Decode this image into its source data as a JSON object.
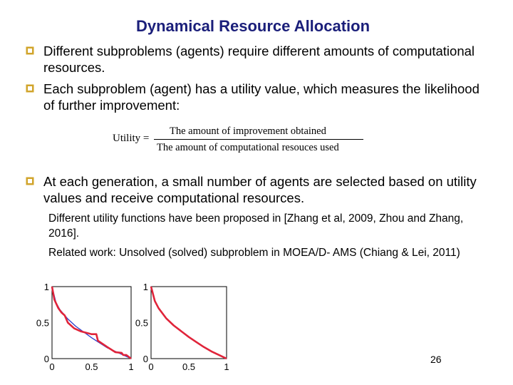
{
  "title": "Dynamical Resource Allocation",
  "colors": {
    "title": "#1b1f7a",
    "bullet_mark": "#d1a42b",
    "curve_red": "#e0243a",
    "curve_blue": "#2b3bcc"
  },
  "bullets": [
    {
      "icon": "checkbox-bullet-icon",
      "text": "Different subproblems (agents) require different amounts of computational resources."
    },
    {
      "icon": "checkbox-bullet-icon",
      "text": " Each subproblem (agent) has a utility value, which measures the likelihood of further improvement:"
    },
    {
      "icon": "checkbox-bullet-icon",
      "text": "At each generation,  a small number of agents are selected based on utility values and receive computational resources."
    }
  ],
  "formula": {
    "lhs": "Utility =",
    "numerator": "The amount of improvement  obtained",
    "denominator": "The amount of computational resouces used"
  },
  "subpoints": [
    "Different utility functions have been proposed in [Zhang et al, 2009, Zhou and Zhang, 2016].",
    "Related work:  Unsolved (solved) subproblem in MOEA/D- AMS (Chiang & Lei, 2011)"
  ],
  "chart_data": [
    {
      "type": "line",
      "xlim": [
        0,
        1
      ],
      "ylim": [
        0,
        1
      ],
      "xticks": [
        "0",
        "0.5",
        "1"
      ],
      "yticks": [
        "0",
        "0.5",
        "1"
      ],
      "series": [
        {
          "color": "#2b3bcc",
          "x": [
            0,
            0.05,
            0.1,
            0.2,
            0.3,
            0.4,
            0.5,
            0.6,
            0.7,
            0.8,
            0.9,
            1.0
          ],
          "y": [
            1.0,
            0.78,
            0.68,
            0.55,
            0.45,
            0.37,
            0.29,
            0.22,
            0.15,
            0.1,
            0.05,
            0.0
          ]
        },
        {
          "color": "#e0243a",
          "x": [
            0,
            0.03,
            0.08,
            0.12,
            0.16,
            0.2,
            0.28,
            0.36,
            0.5,
            0.56,
            0.58,
            0.62,
            0.7,
            0.8,
            0.88,
            0.9,
            0.94,
            1.0
          ],
          "y": [
            1.0,
            0.82,
            0.7,
            0.64,
            0.6,
            0.5,
            0.42,
            0.38,
            0.34,
            0.34,
            0.25,
            0.22,
            0.16,
            0.09,
            0.08,
            0.05,
            0.05,
            0.0
          ]
        }
      ]
    },
    {
      "type": "line",
      "xlim": [
        0,
        1
      ],
      "ylim": [
        0,
        1
      ],
      "xticks": [
        "0",
        "0.5",
        "1"
      ],
      "yticks": [
        "0",
        "0.5",
        "1"
      ],
      "series": [
        {
          "color": "#2b3bcc",
          "x": [
            0,
            0.05,
            0.1,
            0.2,
            0.3,
            0.4,
            0.5,
            0.6,
            0.7,
            0.8,
            0.9,
            1.0
          ],
          "y": [
            1.0,
            0.8,
            0.7,
            0.56,
            0.46,
            0.38,
            0.3,
            0.23,
            0.16,
            0.1,
            0.05,
            0.0
          ]
        },
        {
          "color": "#e0243a",
          "x": [
            0,
            0.05,
            0.1,
            0.2,
            0.3,
            0.4,
            0.5,
            0.6,
            0.7,
            0.8,
            0.9,
            1.0
          ],
          "y": [
            1.0,
            0.8,
            0.7,
            0.56,
            0.46,
            0.38,
            0.3,
            0.23,
            0.16,
            0.1,
            0.05,
            0.0
          ]
        }
      ]
    }
  ],
  "page_number": "26"
}
